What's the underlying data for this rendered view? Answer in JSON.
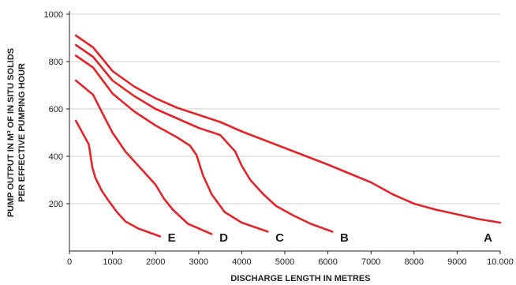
{
  "chart_data": {
    "type": "line",
    "title": "",
    "xlabel": "DISCHARGE LENGTH IN METRES",
    "ylabel_lines": [
      "PUMP OUTPUT IN M³ OF IN SITU SOLIDS",
      "PER EFFECTIVE PUMPING HOUR"
    ],
    "xlim": [
      0,
      10000
    ],
    "ylim": [
      0,
      1000
    ],
    "x_ticks": [
      0,
      1000,
      2000,
      3000,
      4000,
      5000,
      6000,
      7000,
      8000,
      9000,
      10000
    ],
    "x_tick_labels": [
      "0",
      "1000",
      "2000",
      "3000",
      "4000",
      "5000",
      "6000",
      "7000",
      "8000",
      "9000",
      "10.000"
    ],
    "y_ticks": [
      200,
      400,
      600,
      800,
      1000
    ],
    "y_tick_labels": [
      "200",
      "400",
      "600",
      "800",
      "1000"
    ],
    "grid": "horizontal",
    "line_color": "#e0262b",
    "series": [
      {
        "name": "A",
        "x": [
          150,
          550,
          1000,
          1500,
          2000,
          2500,
          3000,
          3500,
          4000,
          5000,
          6000,
          7000,
          7500,
          8000,
          8500,
          9000,
          9500,
          10000
        ],
        "y": [
          910,
          860,
          760,
          695,
          645,
          605,
          575,
          545,
          505,
          435,
          365,
          290,
          240,
          200,
          175,
          155,
          135,
          120
        ]
      },
      {
        "name": "B",
        "x": [
          150,
          550,
          1000,
          1500,
          2000,
          2500,
          3000,
          3500,
          3850,
          4000,
          4200,
          4500,
          4800,
          5200,
          5600,
          6100
        ],
        "y": [
          870,
          820,
          720,
          655,
          600,
          560,
          520,
          490,
          420,
          360,
          300,
          240,
          190,
          150,
          115,
          82
        ]
      },
      {
        "name": "C",
        "x": [
          150,
          550,
          1000,
          1500,
          2000,
          2500,
          2800,
          2950,
          3100,
          3300,
          3600,
          4000,
          4600
        ],
        "y": [
          825,
          775,
          665,
          590,
          530,
          480,
          445,
          405,
          320,
          240,
          165,
          120,
          82
        ]
      },
      {
        "name": "D",
        "x": [
          150,
          550,
          800,
          1000,
          1300,
          1600,
          2000,
          2200,
          2400,
          2750,
          3300
        ],
        "y": [
          720,
          660,
          570,
          500,
          420,
          360,
          280,
          220,
          175,
          115,
          72
        ]
      },
      {
        "name": "E",
        "x": [
          150,
          300,
          450,
          530,
          600,
          750,
          900,
          1100,
          1300,
          1600,
          2100
        ],
        "y": [
          550,
          500,
          450,
          355,
          310,
          255,
          215,
          165,
          125,
          95,
          62
        ]
      }
    ]
  }
}
